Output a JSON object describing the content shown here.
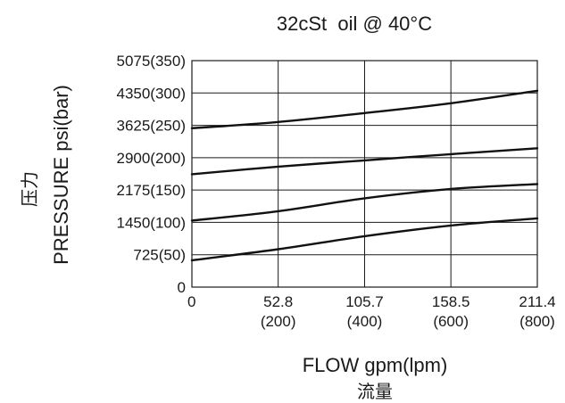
{
  "chart_data": {
    "type": "line",
    "title": "32cSt  oil @ 40°C",
    "xlabel": "FLOW gpm(lpm)",
    "xlabel_cn": "流量",
    "ylabel": "PRESSURE psi(bar)",
    "ylabel_cn": "压力",
    "xlim": [
      0,
      211.4
    ],
    "ylim": [
      0,
      5075
    ],
    "grid": true,
    "x_ticks": [
      {
        "value": 0,
        "label": "0",
        "sublabel": ""
      },
      {
        "value": 52.8,
        "label": "52.8",
        "sublabel": "(200)"
      },
      {
        "value": 105.7,
        "label": "105.7",
        "sublabel": "(400)"
      },
      {
        "value": 158.5,
        "label": "158.5",
        "sublabel": "(600)"
      },
      {
        "value": 211.4,
        "label": "211.4",
        "sublabel": "(800)"
      }
    ],
    "y_ticks": [
      {
        "value": 0,
        "label": "0"
      },
      {
        "value": 725,
        "label": "725(50)"
      },
      {
        "value": 1450,
        "label": "1450(100)"
      },
      {
        "value": 2175,
        "label": "2175(150)"
      },
      {
        "value": 2900,
        "label": "2900(200)"
      },
      {
        "value": 3625,
        "label": "3625(250)"
      },
      {
        "value": 4350,
        "label": "4350(300)"
      },
      {
        "value": 5075,
        "label": "5075(350)"
      }
    ],
    "series": [
      {
        "x": [
          0,
          52.8,
          105.7,
          158.5,
          211.4
        ],
        "values": [
          3560,
          3700,
          3900,
          4120,
          4400
        ]
      },
      {
        "x": [
          0,
          52.8,
          105.7,
          158.5,
          211.4
        ],
        "values": [
          2530,
          2700,
          2840,
          2980,
          3110
        ]
      },
      {
        "x": [
          0,
          52.8,
          105.7,
          158.5,
          211.4
        ],
        "values": [
          1490,
          1700,
          1990,
          2200,
          2310
        ]
      },
      {
        "x": [
          0,
          52.8,
          105.7,
          158.5,
          211.4
        ],
        "values": [
          600,
          850,
          1140,
          1380,
          1540
        ]
      }
    ]
  }
}
